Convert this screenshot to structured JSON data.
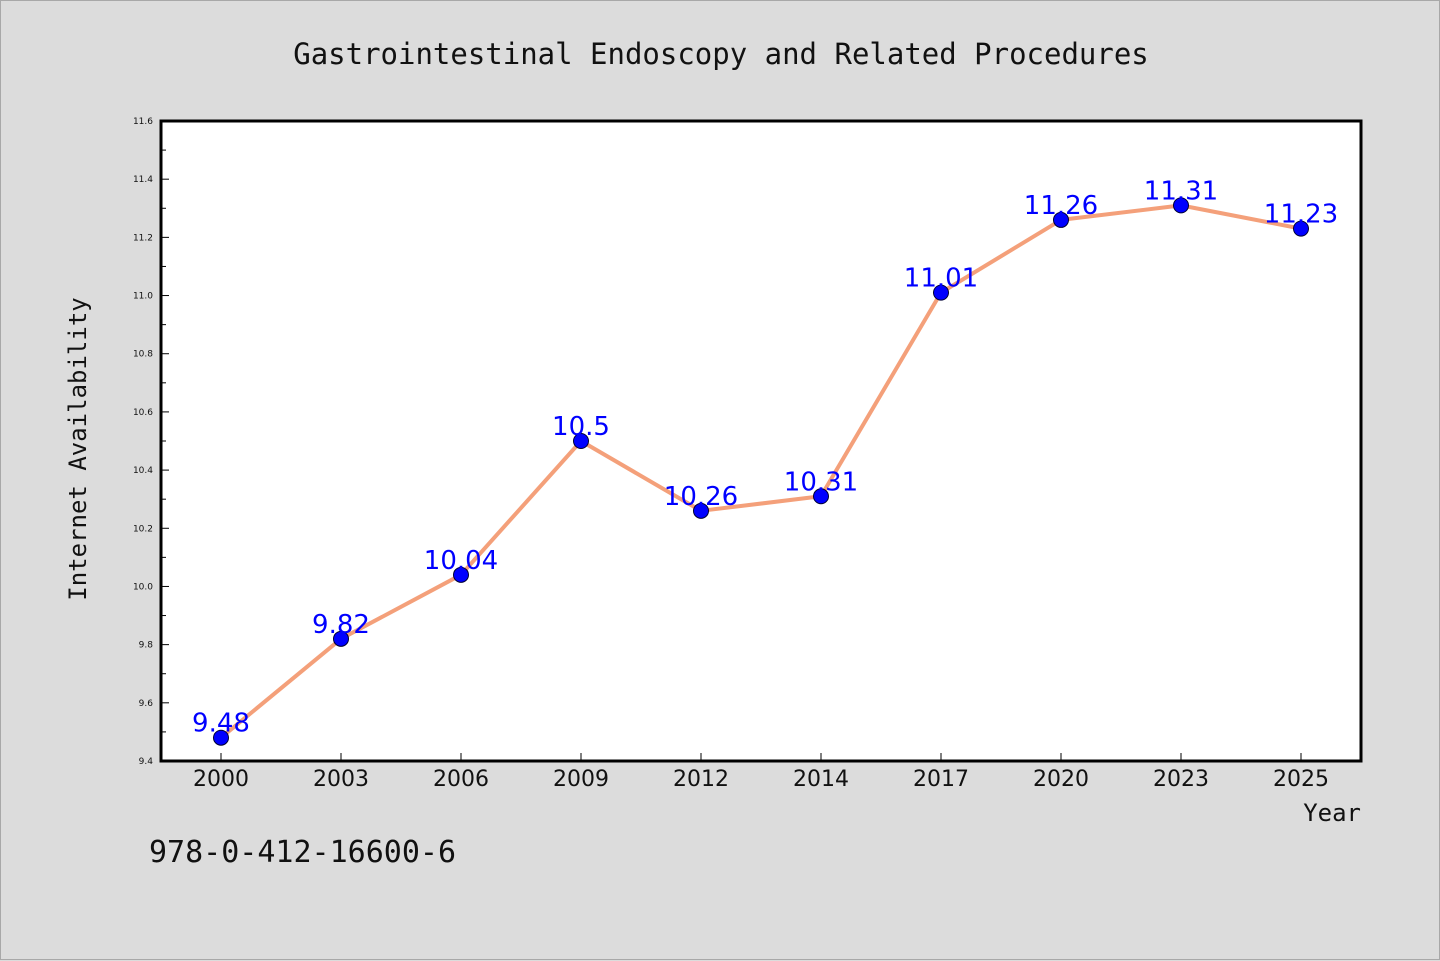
{
  "chart_data": {
    "type": "line",
    "title": "Gastrointestinal Endoscopy and Related Procedures",
    "xlabel": "Year",
    "ylabel": "Internet Availability",
    "categories": [
      "2000",
      "2003",
      "2006",
      "2009",
      "2012",
      "2014",
      "2017",
      "2020",
      "2023",
      "2025"
    ],
    "series": [
      {
        "values": [
          9.48,
          9.82,
          10.04,
          10.5,
          10.26,
          10.31,
          11.01,
          11.26,
          11.31,
          11.23
        ],
        "labels": [
          "9.48",
          "9.82",
          "10.04",
          "10.5",
          "10.26",
          "10.31",
          "11.01",
          "11.26",
          "11.31",
          "11.23"
        ],
        "line_color": "#f4a07a",
        "marker_color": "#0000ff"
      }
    ],
    "ylim": [
      9.4,
      11.6
    ],
    "yticks": [
      "9.4",
      "9.6",
      "9.8",
      "10.0",
      "10.2",
      "10.4",
      "10.6",
      "10.8",
      "11.0",
      "11.2",
      "11.4",
      "11.6"
    ],
    "grid": false,
    "legend": "none"
  },
  "footer": {
    "isbn": "978-0-412-16600-6"
  },
  "colors": {
    "background": "#dcdcdc",
    "plot_area": "#ffffff",
    "data_label": "#0000ff"
  }
}
